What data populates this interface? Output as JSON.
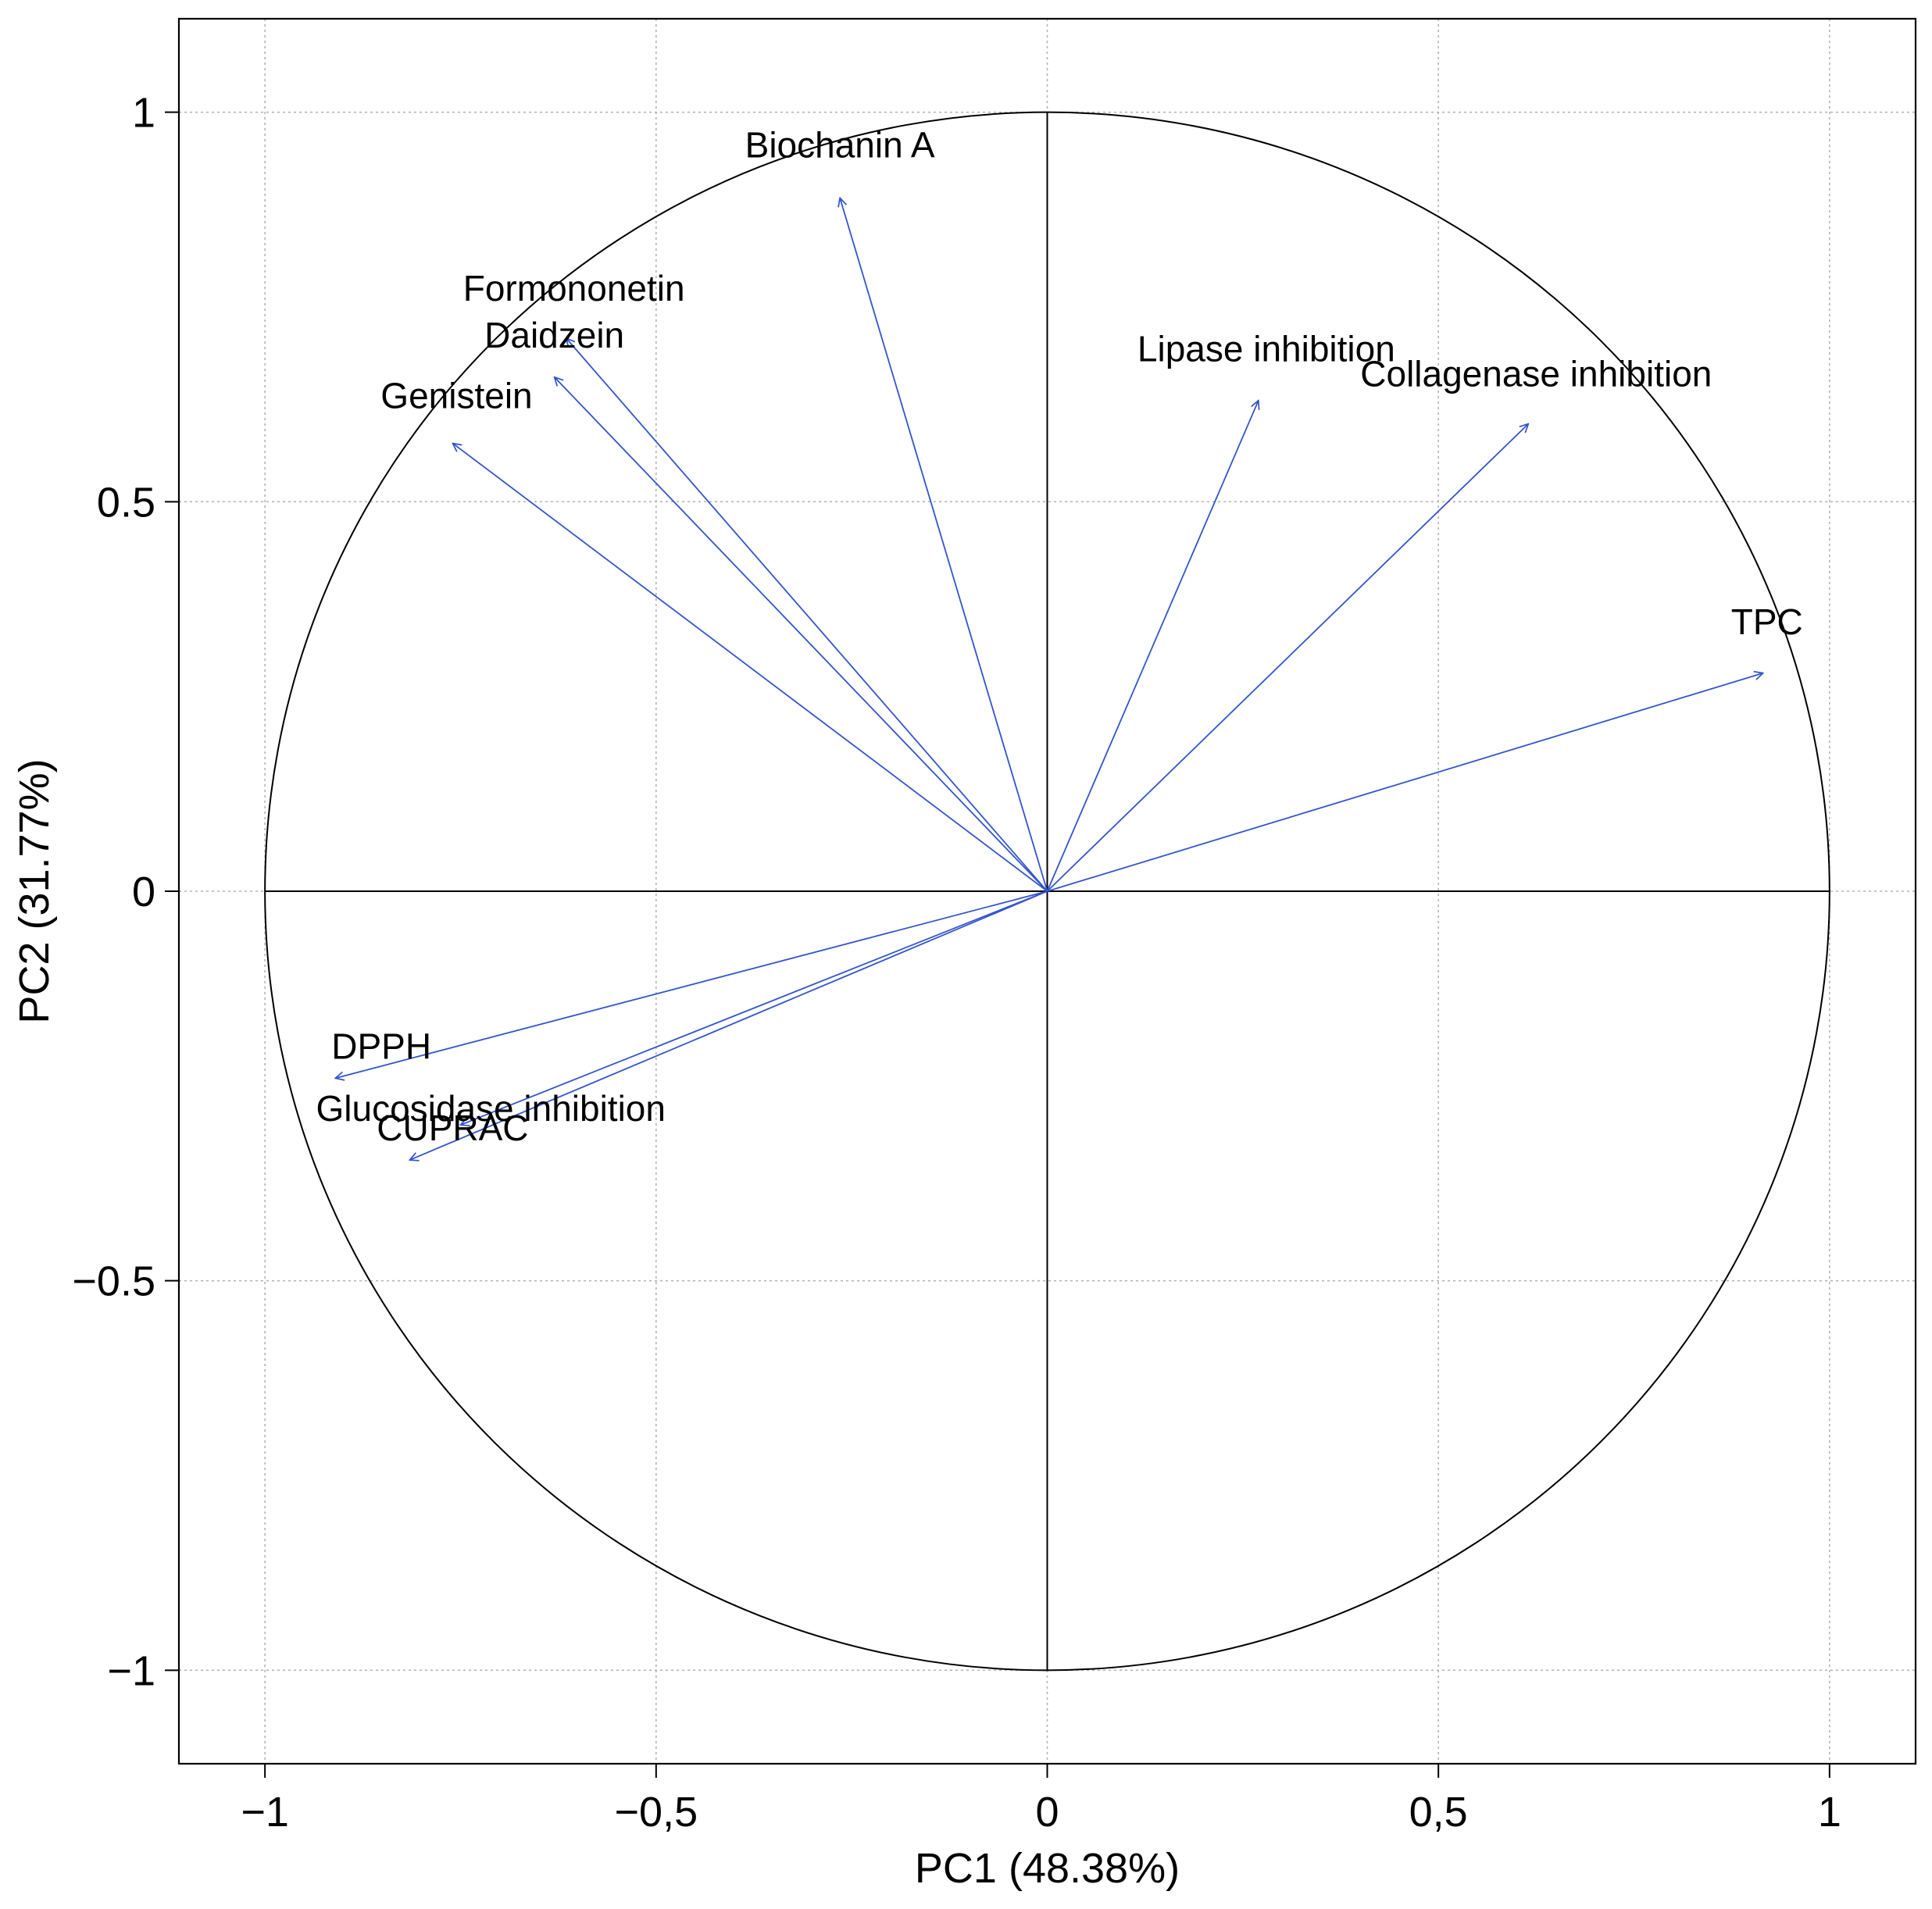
{
  "chart_data": {
    "type": "scatter",
    "subtype": "pca-correlation-circle",
    "title": "",
    "xlabel": "PC1 (48.38%)",
    "ylabel": "PC2 (31.77%)",
    "xlim": [
      -1.11,
      1.11
    ],
    "ylim": [
      -1.12,
      1.12
    ],
    "grid": true,
    "x_ticks": [
      {
        "value": -1,
        "label": "−1"
      },
      {
        "value": -0.5,
        "label": "−0,5"
      },
      {
        "value": 0,
        "label": "0"
      },
      {
        "value": 0.5,
        "label": "0,5"
      },
      {
        "value": 1,
        "label": "1"
      }
    ],
    "y_ticks": [
      {
        "value": -1,
        "label": "−1"
      },
      {
        "value": -0.5,
        "label": "−0.5"
      },
      {
        "value": 0,
        "label": "0"
      },
      {
        "value": 0.5,
        "label": "0.5"
      },
      {
        "value": 1,
        "label": "1"
      }
    ],
    "circle_radius": 1,
    "variables": [
      {
        "name": "Biochanin A",
        "x": -0.265,
        "y": 0.89,
        "label_anchor": "center"
      },
      {
        "name": "Formononetin",
        "x": -0.615,
        "y": 0.71,
        "label_anchor": "center"
      },
      {
        "name": "Daidzein",
        "x": -0.63,
        "y": 0.66,
        "label_anchor": "center"
      },
      {
        "name": "Genistein",
        "x": -0.76,
        "y": 0.575,
        "label_anchor": "center"
      },
      {
        "name": "Lipase inhibition",
        "x": 0.27,
        "y": 0.63,
        "label_anchor": "center"
      },
      {
        "name": "Collagenase inhibition",
        "x": 0.615,
        "y": 0.6,
        "label_anchor": "center"
      },
      {
        "name": "TPC",
        "x": 0.915,
        "y": 0.28,
        "label_anchor": "center"
      },
      {
        "name": "DPPH",
        "x": -0.91,
        "y": -0.24,
        "label_anchor": "start"
      },
      {
        "name": "Glucosidase inhibition",
        "x": -0.75,
        "y": -0.3,
        "label_anchor": "start"
      },
      {
        "name": "CUPRAC",
        "x": -0.815,
        "y": -0.345,
        "label_anchor": "center"
      }
    ],
    "colors": {
      "arrow": "#3355cc",
      "axis": "#000000",
      "grid": "#b4b4b4"
    }
  }
}
